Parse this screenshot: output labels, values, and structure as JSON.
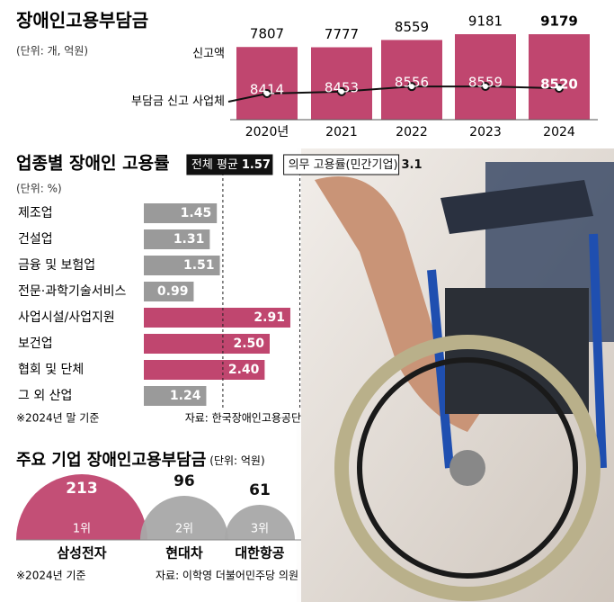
{
  "chart_data": [
    {
      "type": "bar_line",
      "title": "장애인고용부담금",
      "subtitle": "(단위: 개, 억원)",
      "categories": [
        "2020년",
        "2021",
        "2022",
        "2023",
        "2024"
      ],
      "series": [
        {
          "name": "신고액",
          "color": "#c0466f",
          "values": [
            7807,
            7777,
            8559,
            9181,
            9179
          ]
        },
        {
          "name": "부담금 신고 사업체",
          "color": "#111111",
          "values": [
            8414,
            8453,
            8556,
            8559,
            8520
          ]
        }
      ]
    },
    {
      "type": "hbar",
      "title": "업종별 장애인 고용률",
      "subtitle": "(단위: %)",
      "categories": [
        "제조업",
        "건설업",
        "금융 및 보험업",
        "전문·과학기술서비스",
        "사업시설/사업지원",
        "보건업",
        "협회 및 단체",
        "그 외 산업"
      ],
      "values": [
        1.45,
        1.31,
        1.51,
        0.99,
        2.91,
        2.5,
        2.4,
        1.24
      ],
      "value_labels": [
        "1.45",
        "1.31",
        "1.51",
        "0.99",
        "2.91",
        "2.50",
        "2.40",
        "1.24"
      ],
      "color": "#9a9a9a",
      "highlight_color": "#c0466f",
      "reference_lines": [
        {
          "label": "전체 평균",
          "value": 1.57
        },
        {
          "label": "의무 고용률(민간기업)",
          "value": 3.1
        }
      ],
      "notes": [
        "※2024년 말 기준",
        "자료: 한국장애인고용공단"
      ]
    },
    {
      "type": "semicircle",
      "title": "주요 기업 장애인고용부담금",
      "subtitle": "(단위: 억원)",
      "categories": [
        "삼성전자",
        "현대차",
        "대한항공"
      ],
      "values": [
        213,
        96,
        61
      ],
      "ranks": [
        "1위",
        "2위",
        "3위"
      ],
      "colors": [
        "#c0466f",
        "#a8a8a8",
        "#a8a8a8"
      ],
      "notes": [
        "※2024년 기준",
        "자료: 이학영 더불어민주당 의원"
      ]
    }
  ]
}
